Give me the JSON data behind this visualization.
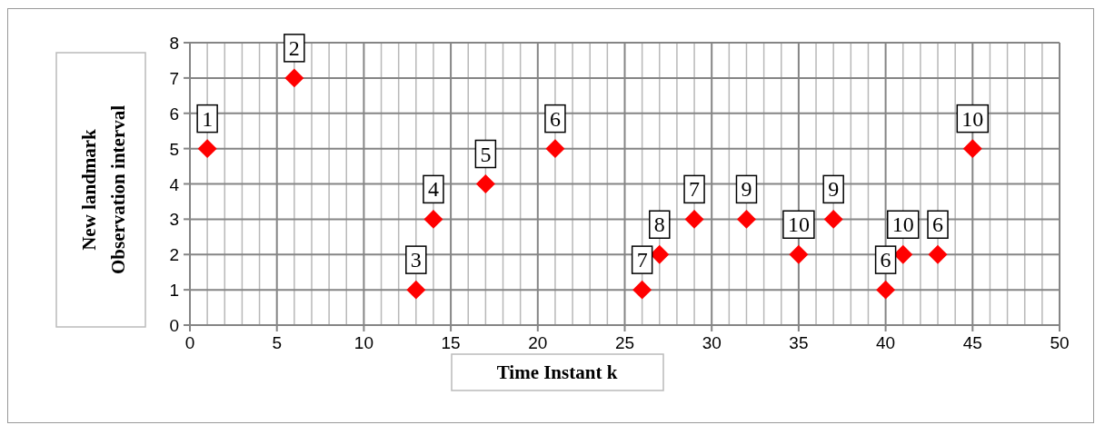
{
  "chart_data": {
    "type": "scatter",
    "xlabel": "Time Instant k",
    "ylabel": "New landmark\nObservation interval",
    "x": [
      1,
      6,
      13,
      14,
      17,
      21,
      26,
      27,
      29,
      32,
      35,
      37,
      40,
      41,
      43,
      45
    ],
    "series": [
      {
        "color": "#ff0000",
        "values": [
          5,
          7,
          1,
          3,
          4,
          5,
          1,
          2,
          3,
          3,
          2,
          3,
          1,
          2,
          2,
          5
        ]
      }
    ],
    "annotations": [
      {
        "text": "1",
        "x": 1,
        "y": 5
      },
      {
        "text": "2",
        "x": 6,
        "y": 7
      },
      {
        "text": "3",
        "x": 13,
        "y": 1
      },
      {
        "text": "4",
        "x": 14,
        "y": 3
      },
      {
        "text": "5",
        "x": 17,
        "y": 4
      },
      {
        "text": "6",
        "x": 21,
        "y": 5
      },
      {
        "text": "7",
        "x": 26,
        "y": 1
      },
      {
        "text": "8",
        "x": 27,
        "y": 2
      },
      {
        "text": "7",
        "x": 29,
        "y": 3
      },
      {
        "text": "9",
        "x": 32,
        "y": 3
      },
      {
        "text": "10",
        "x": 35,
        "y": 2
      },
      {
        "text": "9",
        "x": 37,
        "y": 3
      },
      {
        "text": "6",
        "x": 40,
        "y": 1
      },
      {
        "text": "10",
        "x": 41,
        "y": 2
      },
      {
        "text": "6",
        "x": 43,
        "y": 2
      },
      {
        "text": "10",
        "x": 45,
        "y": 5
      }
    ],
    "marker": "diamond",
    "xlim": [
      0,
      50
    ],
    "ylim": [
      0,
      8
    ],
    "xticks": [
      0,
      {
        "value": 1,
        "label": null
      },
      {
        "value": 2,
        "label": null
      },
      {
        "value": 3,
        "label": null
      },
      {
        "value": 4,
        "label": null
      },
      5,
      {
        "value": 6,
        "label": null
      },
      {
        "value": 7,
        "label": null
      },
      {
        "value": 8,
        "label": null
      },
      {
        "value": 9,
        "label": null
      },
      10,
      {
        "value": 11,
        "label": null
      },
      {
        "value": 12,
        "label": null
      },
      {
        "value": 13,
        "label": null
      },
      {
        "value": 14,
        "label": null
      },
      15,
      {
        "value": 16,
        "label": null
      },
      {
        "value": 17,
        "label": null
      },
      {
        "value": 18,
        "label": null
      },
      {
        "value": 19,
        "label": null
      },
      20,
      {
        "value": 21,
        "label": null
      },
      {
        "value": 22,
        "label": null
      },
      {
        "value": 23,
        "label": null
      },
      {
        "value": 24,
        "label": null
      },
      25,
      {
        "value": 26,
        "label": null
      },
      {
        "value": 27,
        "label": null
      },
      {
        "value": 28,
        "label": null
      },
      {
        "value": 29,
        "label": null
      },
      30,
      {
        "value": 31,
        "label": null
      },
      {
        "value": 32,
        "label": null
      },
      {
        "value": 33,
        "label": null
      },
      {
        "value": 34,
        "label": null
      },
      35,
      {
        "value": 36,
        "label": null
      },
      {
        "value": 37,
        "label": null
      },
      {
        "value": 38,
        "label": null
      },
      {
        "value": 39,
        "label": null
      },
      40,
      {
        "value": 41,
        "label": null
      },
      {
        "value": 42,
        "label": null
      },
      {
        "value": 43,
        "label": null
      },
      {
        "value": 44,
        "label": null
      },
      45,
      {
        "value": 46,
        "label": null
      },
      {
        "value": 47,
        "label": null
      },
      {
        "value": 48,
        "label": null
      },
      {
        "value": 49,
        "label": null
      },
      50
    ],
    "yticks": [
      0,
      1,
      2,
      3,
      4,
      5,
      6,
      7,
      8
    ],
    "grid": true
  }
}
